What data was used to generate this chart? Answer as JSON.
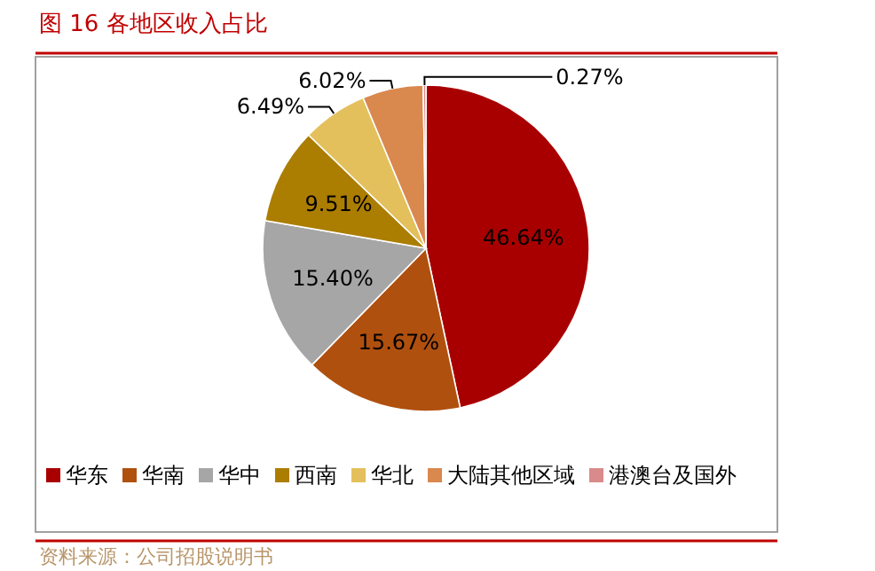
{
  "chart_data": {
    "type": "pie",
    "title": "图 16 各地区收入占比",
    "categories": [
      "华东",
      "华南",
      "华中",
      "西南",
      "华北",
      "大陆其他区域",
      "港澳台及国外"
    ],
    "values": [
      46.64,
      15.67,
      15.4,
      9.51,
      6.49,
      6.02,
      0.27
    ],
    "colors": [
      "#a80000",
      "#b0500f",
      "#a6a6a6",
      "#ab7d00",
      "#e3c05c",
      "#d9884e",
      "#d98a8a"
    ],
    "value_labels": [
      "46.64%",
      "15.67%",
      "15.40%",
      "9.51%",
      "6.49%",
      "6.02%",
      "0.27%"
    ],
    "legend": "bottom",
    "annotations": [
      "资料来源：公司招股说明书"
    ]
  }
}
